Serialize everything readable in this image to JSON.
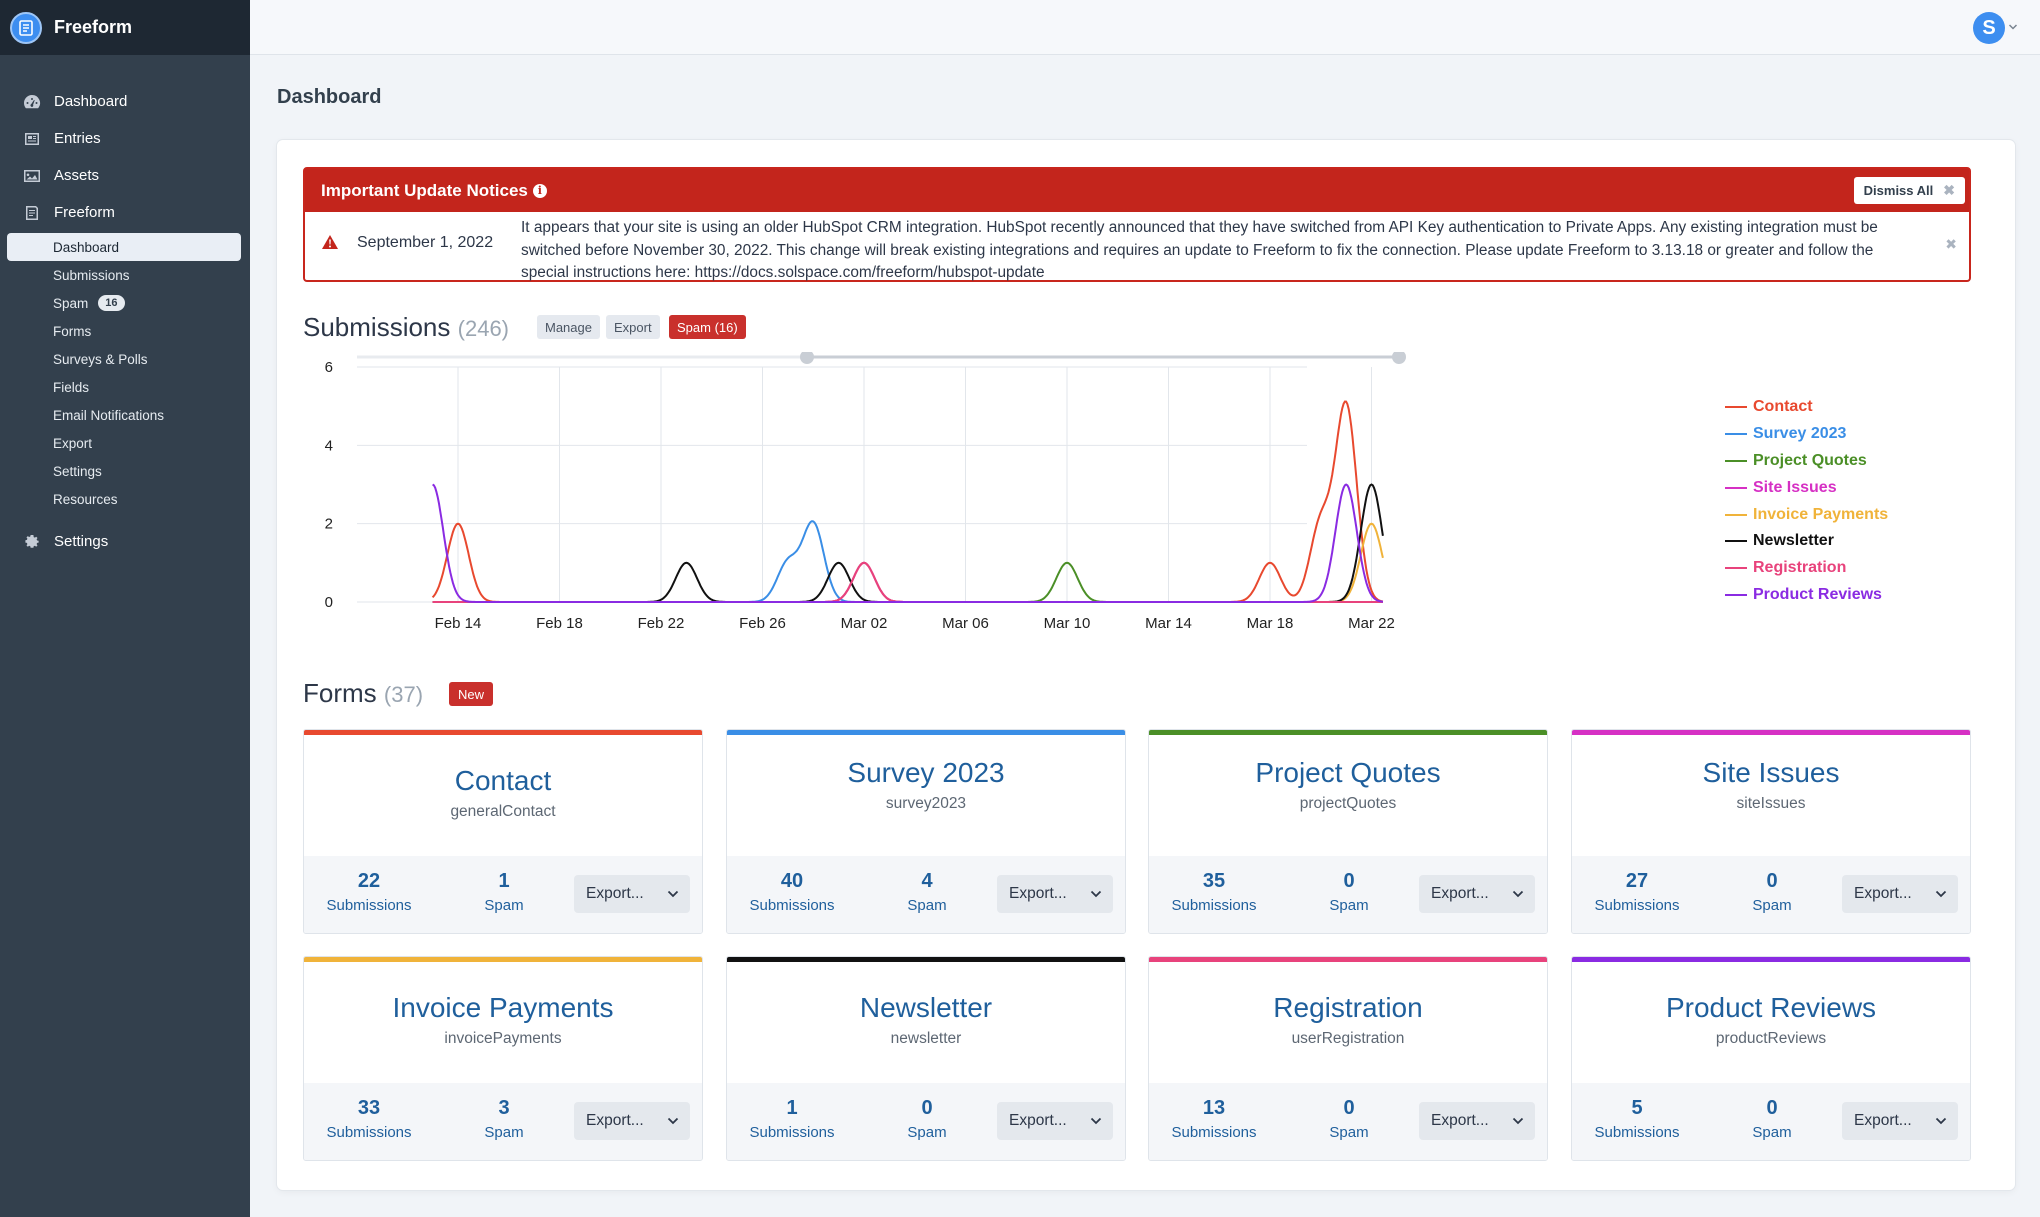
{
  "app": {
    "name": "Freeform"
  },
  "colors": {
    "contact": "#e8492f",
    "survey": "#3a8ee6",
    "quotes": "#4b8f27",
    "issues": "#d630c4",
    "invoice": "#f0b33a",
    "newsletter": "#111111",
    "registration": "#e8437c",
    "reviews": "#8a2be2"
  },
  "sidebar": {
    "items": [
      {
        "label": "Dashboard",
        "icon": "gauge-icon"
      },
      {
        "label": "Entries",
        "icon": "newspaper-icon"
      },
      {
        "label": "Assets",
        "icon": "image-icon"
      },
      {
        "label": "Freeform",
        "icon": "freeform-icon"
      }
    ],
    "subitems": [
      {
        "label": "Dashboard"
      },
      {
        "label": "Submissions"
      },
      {
        "label": "Spam",
        "badge": "16"
      },
      {
        "label": "Forms"
      },
      {
        "label": "Surveys & Polls"
      },
      {
        "label": "Fields"
      },
      {
        "label": "Email Notifications"
      },
      {
        "label": "Export"
      },
      {
        "label": "Settings"
      },
      {
        "label": "Resources"
      }
    ],
    "settings": {
      "label": "Settings",
      "icon": "gear-icon"
    }
  },
  "topbar": {
    "avatar_letter": "S"
  },
  "page": {
    "title": "Dashboard"
  },
  "notice": {
    "title": "Important Update Notices",
    "dismiss_all": "Dismiss All",
    "date": "September 1, 2022",
    "text": "It appears that your site is using an older HubSpot CRM integration. HubSpot recently announced that they have switched from API Key authentication to Private Apps. Any existing integration must be switched before November 30, 2022. This change will break existing integrations and requires an update to Freeform to fix the connection. Please update Freeform to 3.13.18 or greater and follow the special instructions here: https://docs.solspace.com/freeform/hubspot-update"
  },
  "submissions": {
    "title": "Submissions",
    "count": "(246)",
    "manage": "Manage",
    "export": "Export",
    "spam": "Spam (16)"
  },
  "chart_data": {
    "type": "line",
    "x": [
      "Feb 14",
      "Feb 18",
      "Feb 22",
      "Feb 26",
      "Mar 02",
      "Mar 06",
      "Mar 10",
      "Mar 14",
      "Mar 18",
      "Mar 22"
    ],
    "ylim": [
      0,
      6
    ],
    "yticks": [
      "0",
      "2",
      "4",
      "6"
    ],
    "grid": true,
    "legend": "right",
    "series": [
      {
        "name": "Contact",
        "color": "#e8492f",
        "points": [
          [
            "Feb 14",
            2
          ],
          [
            "Mar 02",
            1
          ],
          [
            "Mar 18",
            1
          ],
          [
            "Mar 20",
            2
          ],
          [
            "Mar 21",
            5
          ]
        ]
      },
      {
        "name": "Survey 2023",
        "color": "#3a8ee6",
        "points": [
          [
            "Feb 27",
            1
          ],
          [
            "Feb 28",
            2
          ]
        ]
      },
      {
        "name": "Project Quotes",
        "color": "#4b8f27",
        "points": [
          [
            "Mar 10",
            1
          ]
        ]
      },
      {
        "name": "Site Issues",
        "color": "#d630c4",
        "points": [
          [
            "Mar 02",
            1
          ]
        ]
      },
      {
        "name": "Invoice Payments",
        "color": "#f0b33a",
        "points": [
          [
            "Mar 22",
            2
          ]
        ]
      },
      {
        "name": "Newsletter",
        "color": "#111111",
        "points": [
          [
            "Feb 23",
            1
          ],
          [
            "Mar 01",
            1
          ],
          [
            "Mar 22",
            3
          ]
        ]
      },
      {
        "name": "Registration",
        "color": "#e8437c",
        "points": [
          [
            "Mar 02",
            1
          ]
        ]
      },
      {
        "name": "Product Reviews",
        "color": "#8a2be2",
        "points": [
          [
            "Feb 13",
            3
          ],
          [
            "Mar 21",
            3
          ]
        ]
      }
    ]
  },
  "forms": {
    "title": "Forms",
    "count": "(37)",
    "new": "New",
    "cards": [
      {
        "name": "Contact",
        "handle": "generalContact",
        "submissions": "22",
        "spam": "1",
        "color": "#e8492f"
      },
      {
        "name": "Survey 2023",
        "handle": "survey2023",
        "submissions": "40",
        "spam": "4",
        "color": "#3a8ee6"
      },
      {
        "name": "Project Quotes",
        "handle": "projectQuotes",
        "submissions": "35",
        "spam": "0",
        "color": "#4b8f27"
      },
      {
        "name": "Site Issues",
        "handle": "siteIssues",
        "submissions": "27",
        "spam": "0",
        "color": "#d630c4"
      },
      {
        "name": "Invoice Payments",
        "handle": "invoicePayments",
        "submissions": "33",
        "spam": "3",
        "color": "#f0b33a"
      },
      {
        "name": "Newsletter",
        "handle": "newsletter",
        "submissions": "1",
        "spam": "0",
        "color": "#111111"
      },
      {
        "name": "Registration",
        "handle": "userRegistration",
        "submissions": "13",
        "spam": "0",
        "color": "#e8437c"
      },
      {
        "name": "Product Reviews",
        "handle": "productReviews",
        "submissions": "5",
        "spam": "0",
        "color": "#8a2be2"
      }
    ],
    "submissions_label": "Submissions",
    "spam_label": "Spam",
    "export_label": "Export..."
  }
}
